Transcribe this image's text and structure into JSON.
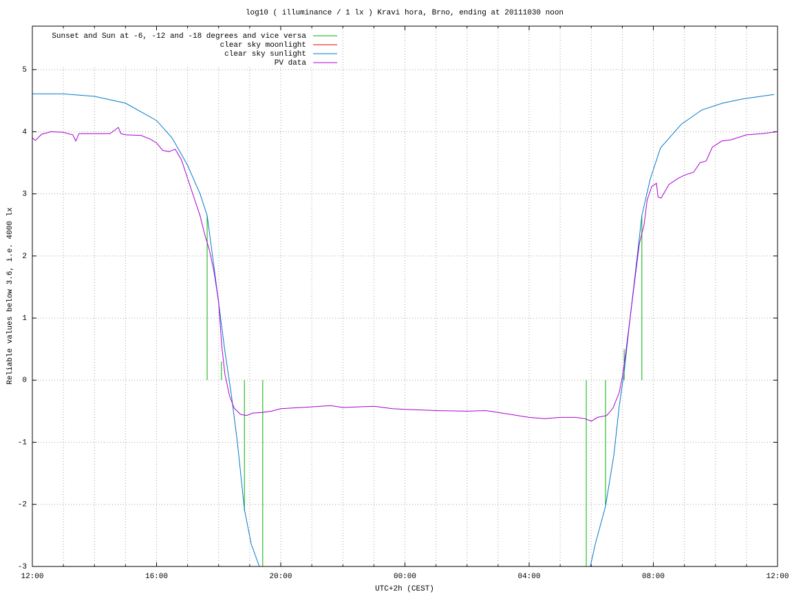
{
  "chart_data": {
    "type": "line",
    "title": "log10 ( illuminance / 1 lx ) Kravi hora, Brno, ending at 20111030 noon",
    "x_label": "UTC+2h (CEST)",
    "y_label": "Reliable values below 3.6, i.e. 4000 lx",
    "xlim": [
      0,
      24
    ],
    "ylim": [
      -3,
      5.7
    ],
    "xticks": [
      {
        "value": 0,
        "label": "12:00"
      },
      {
        "value": 4,
        "label": "16:00"
      },
      {
        "value": 8,
        "label": "20:00"
      },
      {
        "value": 12,
        "label": "00:00"
      },
      {
        "value": 16,
        "label": "04:00"
      },
      {
        "value": 20,
        "label": "08:00"
      },
      {
        "value": 24,
        "label": "12:00"
      }
    ],
    "xminorticks": [
      1,
      2,
      3,
      5,
      6,
      7,
      9,
      10,
      11,
      13,
      14,
      15,
      17,
      18,
      19,
      21,
      22,
      23
    ],
    "yticks": [
      -3,
      -2,
      -1,
      0,
      1,
      2,
      3,
      4,
      5
    ],
    "grid": true,
    "legend": "top-left",
    "series": [
      {
        "name": "Sunset and Sun at -6, -12 and -18 degrees and vice versa",
        "color": "#00b000",
        "style": "impulses",
        "x": [
          5.63,
          6.09,
          6.83,
          7.42,
          17.84,
          18.46,
          19.06,
          19.63
        ],
        "values": [
          2.65,
          0.3,
          -2.1,
          -3,
          -3,
          -2,
          0.5,
          2.65
        ]
      },
      {
        "name": "clear sky moonlight",
        "color": "#e00000",
        "style": "lines",
        "x": [
          0,
          24
        ],
        "values": [
          null,
          null
        ]
      },
      {
        "name": "clear sky sunlight",
        "color": "#0078c8",
        "style": "lines",
        "x": [
          0,
          1,
          2,
          3,
          4,
          4.5,
          5,
          5.4,
          5.63,
          5.83,
          6.0,
          6.2,
          6.4,
          6.6,
          6.83,
          7.05,
          7.31,
          12,
          17.97,
          18.13,
          18.46,
          18.73,
          18.9,
          19.06,
          19.23,
          19.46,
          19.63,
          19.9,
          20.23,
          20.9,
          21.56,
          22.23,
          22.89,
          23.89
        ],
        "values": [
          4.61,
          4.61,
          4.57,
          4.46,
          4.18,
          3.9,
          3.46,
          3.0,
          2.65,
          1.9,
          1.24,
          0.47,
          -0.2,
          -0.98,
          -2.08,
          -2.64,
          -3,
          null,
          -3,
          -2.64,
          -2.03,
          -1.2,
          -0.42,
          0.13,
          0.91,
          1.9,
          2.65,
          3.24,
          3.74,
          4.12,
          4.35,
          4.46,
          4.53,
          4.6
        ]
      },
      {
        "name": "PV data",
        "color": "#a800d0",
        "style": "lines",
        "x": [
          0,
          0.1,
          0.3,
          0.6,
          1.0,
          1.3,
          1.4,
          1.5,
          2.0,
          2.5,
          2.77,
          2.85,
          3.0,
          3.5,
          3.8,
          4.0,
          4.2,
          4.4,
          4.6,
          4.8,
          5.0,
          5.2,
          5.4,
          5.55,
          5.7,
          5.85,
          6.0,
          6.1,
          6.2,
          6.35,
          6.5,
          6.7,
          6.9,
          7.1,
          7.4,
          7.7,
          8.0,
          9.0,
          9.6,
          10.0,
          10.5,
          11.0,
          11.6,
          12.0,
          13.0,
          14.0,
          14.6,
          15.0,
          15.5,
          16.0,
          16.5,
          17.0,
          17.5,
          17.8,
          18.0,
          18.2,
          18.5,
          18.7,
          18.9,
          19.0,
          19.1,
          19.25,
          19.4,
          19.55,
          19.7,
          19.8,
          19.95,
          20.1,
          20.15,
          20.25,
          20.5,
          20.8,
          21.0,
          21.3,
          21.5,
          21.7,
          21.9,
          22.2,
          22.5,
          23.0,
          23.5,
          24.0
        ],
        "values": [
          3.9,
          3.86,
          3.96,
          4.0,
          3.99,
          3.95,
          3.85,
          3.97,
          3.97,
          3.97,
          4.07,
          3.97,
          3.95,
          3.94,
          3.88,
          3.82,
          3.7,
          3.68,
          3.72,
          3.55,
          3.25,
          2.95,
          2.65,
          2.35,
          2.1,
          1.75,
          1.25,
          0.55,
          0.1,
          -0.25,
          -0.45,
          -0.55,
          -0.57,
          -0.53,
          -0.52,
          -0.5,
          -0.46,
          -0.43,
          -0.41,
          -0.44,
          -0.43,
          -0.42,
          -0.46,
          -0.47,
          -0.49,
          -0.5,
          -0.49,
          -0.52,
          -0.56,
          -0.6,
          -0.62,
          -0.6,
          -0.6,
          -0.62,
          -0.66,
          -0.6,
          -0.57,
          -0.45,
          -0.2,
          0.05,
          0.4,
          1.0,
          1.6,
          2.2,
          2.5,
          2.9,
          3.12,
          3.17,
          2.95,
          2.93,
          3.15,
          3.25,
          3.3,
          3.35,
          3.5,
          3.53,
          3.75,
          3.85,
          3.87,
          3.95,
          3.97,
          4.0
        ]
      }
    ]
  }
}
